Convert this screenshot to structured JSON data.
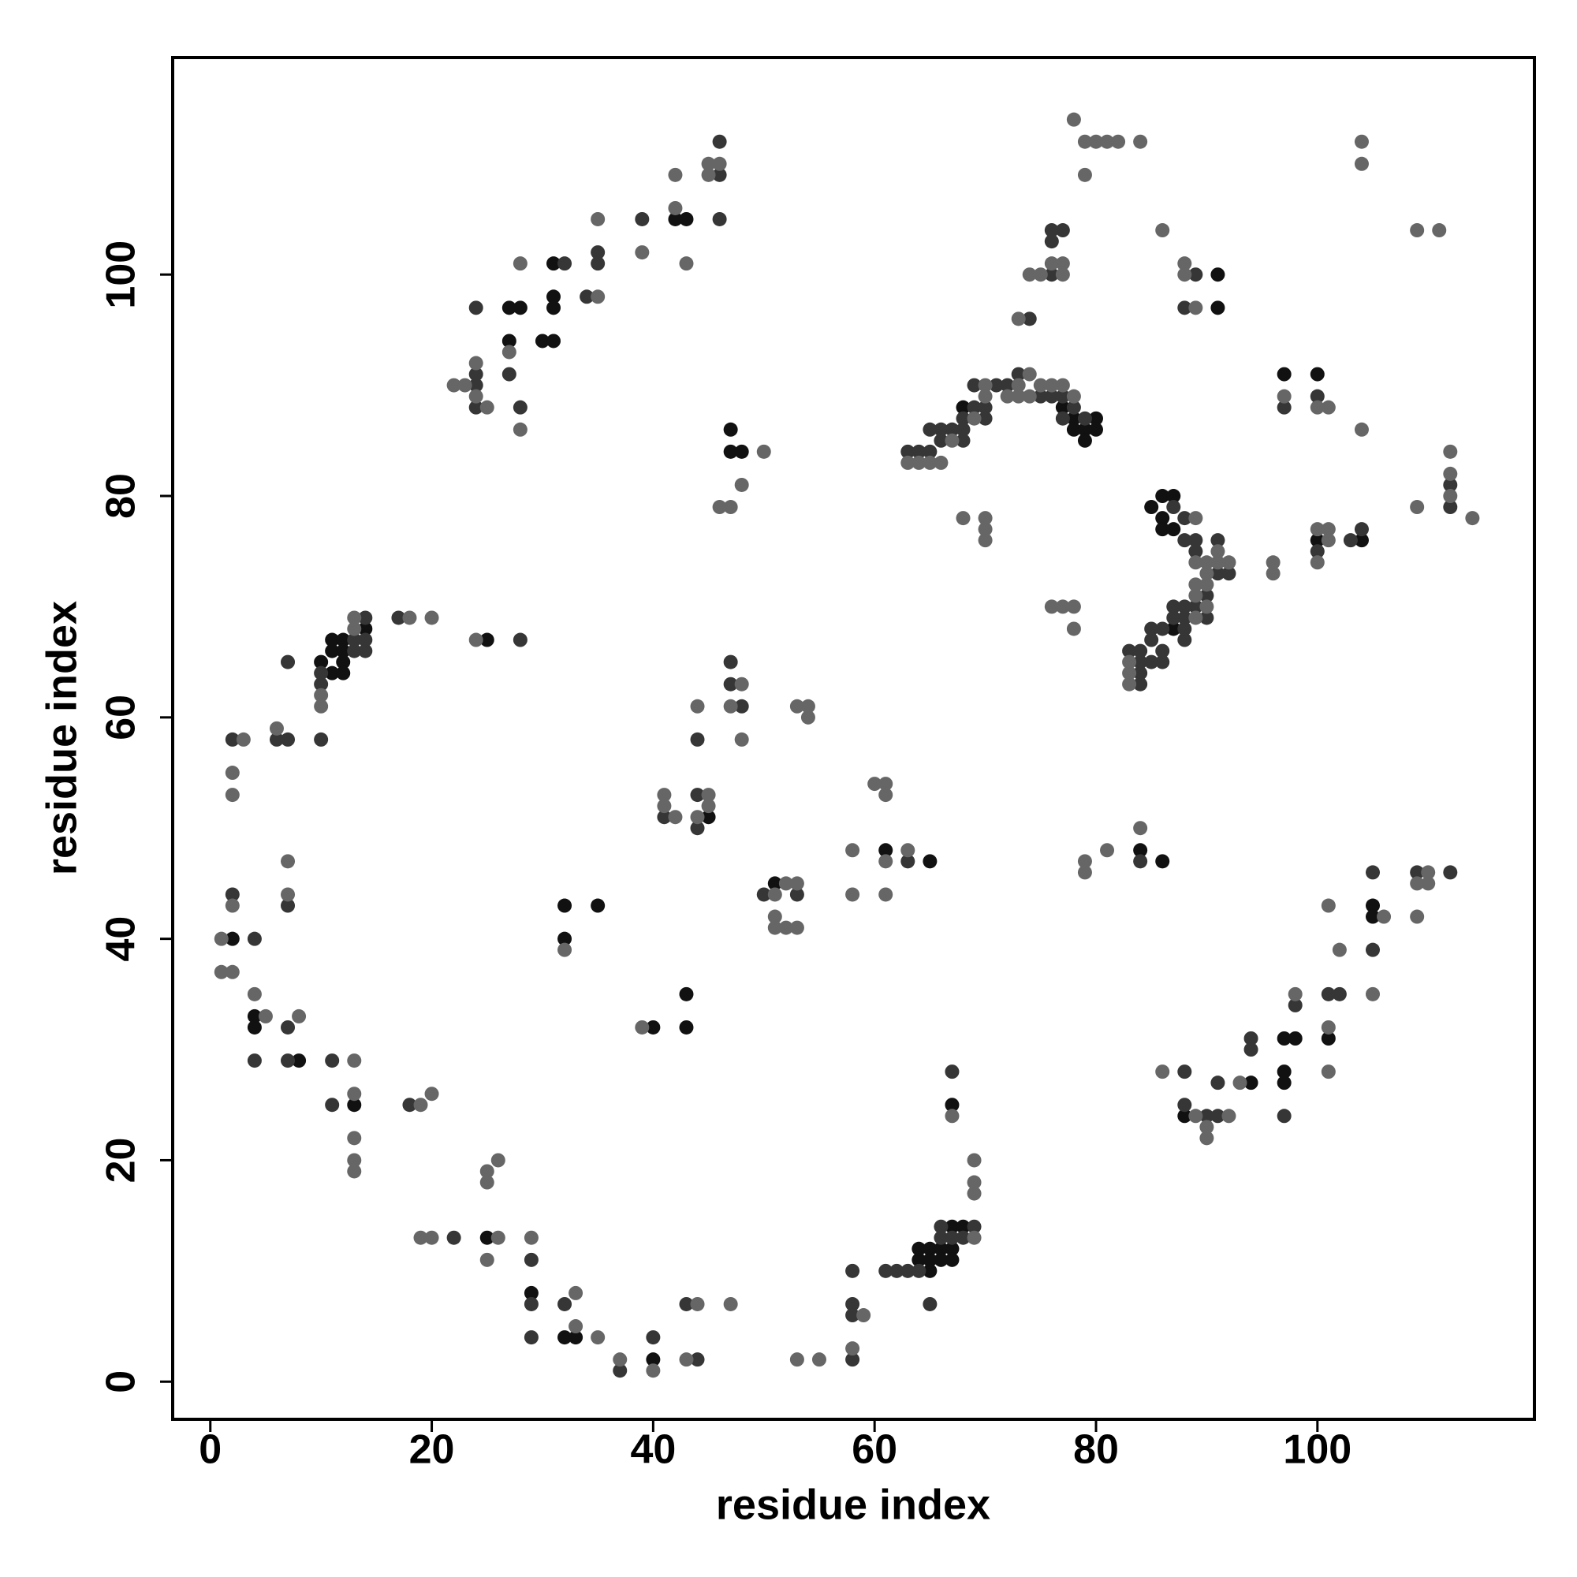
{
  "chart_data": {
    "type": "scatter",
    "xlabel": "residue index",
    "ylabel": "residue index",
    "xlim": [
      -3.4,
      119.6
    ],
    "ylim": [
      -3.4,
      119.6
    ],
    "xticks": [
      0,
      20,
      40,
      60,
      80,
      100
    ],
    "yticks": [
      0,
      20,
      40,
      60,
      80,
      100
    ],
    "grid": false,
    "series": [
      {
        "color": "#111111",
        "x": [
          27,
          28,
          27,
          31,
          31,
          31,
          30,
          31,
          42,
          43,
          47,
          47,
          48,
          91,
          91,
          97,
          100,
          100,
          104,
          68,
          77,
          78,
          78,
          79,
          79,
          80,
          80,
          85,
          86,
          87,
          86,
          86,
          87,
          87,
          10,
          11,
          11,
          12,
          12,
          12,
          11,
          12,
          14,
          25,
          45,
          51,
          61,
          65,
          84,
          86,
          32,
          35,
          32,
          43,
          40,
          43,
          2,
          4,
          4,
          8,
          13,
          25,
          29,
          32,
          33,
          40,
          64,
          64,
          65,
          65,
          65,
          66,
          66,
          67,
          67,
          67,
          68,
          67,
          88,
          94,
          97,
          98,
          97,
          97,
          101,
          105,
          105
        ],
        "values": [
          97,
          97,
          94,
          101,
          98,
          97,
          94,
          94,
          105,
          105,
          86,
          84,
          84,
          100,
          97,
          91,
          91,
          76,
          76,
          88,
          88,
          87,
          86,
          86,
          85,
          87,
          86,
          79,
          80,
          80,
          78,
          77,
          77,
          68,
          65,
          66,
          67,
          67,
          66,
          65,
          64,
          64,
          68,
          67,
          51,
          45,
          48,
          47,
          48,
          47,
          43,
          43,
          40,
          35,
          32,
          32,
          40,
          33,
          32,
          29,
          25,
          13,
          8,
          4,
          4,
          2,
          11,
          12,
          12,
          11,
          10,
          12,
          11,
          14,
          12,
          11,
          14,
          25,
          24,
          27,
          31,
          31,
          28,
          27,
          31,
          43,
          42
        ]
      },
      {
        "color": "#363636",
        "x": [
          24,
          24,
          24,
          24,
          27,
          28,
          32,
          34,
          35,
          35,
          39,
          46,
          46,
          46,
          76,
          77,
          76,
          76,
          74,
          89,
          88,
          97,
          100,
          112,
          112,
          100,
          103,
          104,
          63,
          64,
          65,
          65,
          66,
          66,
          67,
          68,
          68,
          68,
          69,
          70,
          70,
          69,
          71,
          72,
          73,
          75,
          76,
          77,
          77,
          78,
          79,
          87,
          88,
          88,
          89,
          89,
          91,
          92,
          91,
          90,
          89,
          88,
          90,
          88,
          87,
          87,
          88,
          88,
          86,
          85,
          85,
          84,
          83,
          84,
          84,
          84,
          85,
          86,
          86,
          13,
          10,
          10,
          13,
          14,
          14,
          14,
          7,
          10,
          7,
          6,
          2,
          17,
          28,
          47,
          47,
          48,
          44,
          41,
          44,
          44,
          50,
          53,
          63,
          84,
          7,
          2,
          4,
          7,
          4,
          7,
          11,
          11,
          18,
          22,
          29,
          29,
          29,
          32,
          37,
          40,
          43,
          44,
          58,
          58,
          58,
          58,
          61,
          62,
          63,
          64,
          66,
          66,
          67,
          68,
          69,
          65,
          67,
          88,
          88,
          90,
          91,
          91,
          94,
          94,
          97,
          98,
          101,
          102,
          105,
          105,
          109,
          112
        ],
        "values": [
          97,
          91,
          90,
          88,
          91,
          88,
          101,
          98,
          101,
          102,
          105,
          109,
          112,
          105,
          104,
          104,
          103,
          100,
          96,
          100,
          97,
          88,
          89,
          81,
          79,
          75,
          76,
          77,
          84,
          84,
          84,
          86,
          86,
          85,
          86,
          87,
          86,
          85,
          88,
          88,
          87,
          90,
          90,
          90,
          91,
          89,
          89,
          89,
          87,
          88,
          87,
          79,
          78,
          76,
          76,
          75,
          76,
          73,
          73,
          71,
          70,
          70,
          69,
          69,
          70,
          69,
          68,
          67,
          68,
          68,
          67,
          66,
          66,
          65,
          64,
          63,
          65,
          65,
          66,
          67,
          64,
          63,
          66,
          66,
          67,
          69,
          65,
          58,
          58,
          58,
          58,
          69,
          67,
          65,
          63,
          61,
          58,
          51,
          53,
          50,
          44,
          44,
          47,
          47,
          43,
          44,
          40,
          32,
          29,
          29,
          29,
          25,
          25,
          13,
          11,
          7,
          4,
          7,
          1,
          4,
          7,
          2,
          10,
          7,
          6,
          2,
          10,
          10,
          10,
          10,
          14,
          13,
          13,
          13,
          14,
          7,
          28,
          28,
          25,
          24,
          24,
          27,
          30,
          31,
          24,
          34,
          35,
          35,
          46,
          39,
          46,
          46
        ]
      },
      {
        "color": "#666666",
        "x": [
          24,
          24,
          25,
          22,
          23,
          27,
          28,
          28,
          35,
          35,
          39,
          42,
          42,
          43,
          45,
          46,
          45,
          50,
          48,
          46,
          47,
          78,
          79,
          80,
          81,
          82,
          84,
          79,
          76,
          77,
          77,
          74,
          75,
          73,
          86,
          88,
          88,
          89,
          104,
          104,
          109,
          111,
          97,
          100,
          101,
          104,
          112,
          112,
          112,
          109,
          114,
          100,
          101,
          101,
          100,
          96,
          96,
          63,
          64,
          65,
          66,
          67,
          69,
          70,
          70,
          72,
          73,
          73,
          74,
          74,
          75,
          76,
          77,
          78,
          68,
          70,
          70,
          70,
          89,
          90,
          89,
          91,
          90,
          91,
          92,
          90,
          89,
          89,
          90,
          89,
          83,
          83,
          83,
          76,
          77,
          78,
          78,
          10,
          10,
          13,
          13,
          6,
          3,
          2,
          2,
          18,
          20,
          24,
          48,
          47,
          48,
          44,
          53,
          54,
          54,
          41,
          41,
          42,
          45,
          45,
          44,
          52,
          53,
          51,
          51,
          51,
          52,
          53,
          58,
          58,
          60,
          61,
          61,
          63,
          61,
          61,
          79,
          79,
          81,
          84,
          32,
          39,
          7,
          7,
          2,
          1,
          1,
          2,
          4,
          5,
          8,
          13,
          13,
          13,
          13,
          13,
          19,
          20,
          25,
          25,
          26,
          19,
          20,
          26,
          29,
          25,
          33,
          33,
          35,
          37,
          40,
          44,
          47,
          43,
          53,
          55,
          59,
          58,
          69,
          67,
          69,
          69,
          69,
          86,
          89,
          92,
          90,
          90,
          93,
          98,
          101,
          101,
          101,
          102,
          106,
          105,
          110,
          110,
          109,
          109
        ],
        "values": [
          92,
          89,
          88,
          90,
          90,
          93,
          86,
          101,
          98,
          105,
          102,
          106,
          109,
          101,
          110,
          110,
          109,
          84,
          81,
          79,
          79,
          114,
          112,
          112,
          112,
          112,
          112,
          109,
          101,
          101,
          100,
          100,
          100,
          96,
          104,
          101,
          100,
          97,
          112,
          110,
          104,
          104,
          89,
          88,
          88,
          86,
          84,
          82,
          80,
          79,
          78,
          77,
          77,
          76,
          74,
          74,
          73,
          83,
          83,
          83,
          83,
          85,
          87,
          89,
          90,
          89,
          90,
          89,
          91,
          89,
          90,
          90,
          90,
          89,
          78,
          78,
          77,
          76,
          78,
          74,
          74,
          75,
          73,
          74,
          74,
          72,
          72,
          71,
          70,
          69,
          65,
          64,
          63,
          70,
          70,
          70,
          68,
          62,
          61,
          69,
          68,
          59,
          58,
          55,
          53,
          69,
          69,
          67,
          63,
          61,
          58,
          61,
          61,
          61,
          60,
          53,
          52,
          51,
          53,
          52,
          51,
          45,
          45,
          44,
          42,
          41,
          41,
          41,
          48,
          44,
          54,
          54,
          53,
          48,
          47,
          44,
          47,
          46,
          48,
          50,
          39,
          32,
          47,
          44,
          43,
          40,
          37,
          37,
          35,
          33,
          33,
          29,
          26,
          22,
          20,
          19,
          25,
          26,
          19,
          18,
          20,
          13,
          13,
          13,
          13,
          11,
          8,
          5,
          4,
          2,
          1,
          7,
          7,
          2,
          2,
          2,
          6,
          3,
          13,
          24,
          20,
          18,
          17,
          28,
          24,
          24,
          23,
          22,
          27,
          35,
          32,
          28,
          43,
          39,
          42,
          35,
          46,
          45,
          45,
          42
        ]
      }
    ]
  }
}
